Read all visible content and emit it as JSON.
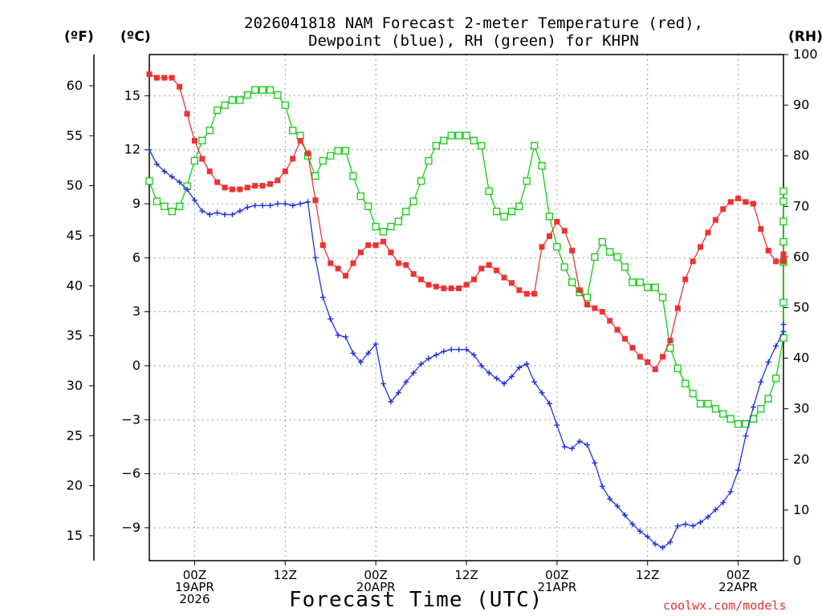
{
  "title": "2026041818 NAM Forecast 2-meter Temperature (red), Dewpoint (blue), RH (green) for KHPN",
  "title_lines": [
    "2026041818 NAM Forecast 2-meter Temperature (red),",
    "Dewpoint (blue), RH (green) for KHPN"
  ],
  "units": {
    "fahrenheit": "(ºF)",
    "celsius": "(ºC)",
    "rh": "(RH)"
  },
  "xlabel": "Forecast Time (UTC)",
  "credit": "coolwx.com/models",
  "colors": {
    "temperature": "#ee3333",
    "dewpoint": "#2233dd",
    "rh": "#11cc11",
    "grid": "#999999"
  },
  "chart_data": {
    "type": "line",
    "title": "2026041818 NAM Forecast 2-meter Temperature (red), Dewpoint (blue), RH (green) for KHPN",
    "xlabel": "Forecast Time (UTC)",
    "x_unit": "forecast hour",
    "x_range": [
      0,
      84
    ],
    "y_left_celsius": {
      "label": "(ºC)",
      "ticks": [
        15,
        12,
        9,
        6,
        3,
        0,
        -3,
        -6,
        -9
      ]
    },
    "y_left_fahrenheit": {
      "label": "(ºF)",
      "ticks": [
        60,
        55,
        50,
        45,
        40,
        35,
        30,
        25,
        20,
        15
      ]
    },
    "y_right_rh": {
      "label": "(RH)",
      "range": [
        0,
        100
      ],
      "ticks": [
        100,
        90,
        80,
        70,
        60,
        50,
        40,
        30,
        20,
        10,
        0
      ]
    },
    "x_ticks": [
      {
        "hour": 6,
        "lines": [
          "00Z",
          "19APR",
          "2026"
        ]
      },
      {
        "hour": 18,
        "lines": [
          "12Z"
        ]
      },
      {
        "hour": 30,
        "lines": [
          "00Z",
          "20APR"
        ]
      },
      {
        "hour": 42,
        "lines": [
          "12Z"
        ]
      },
      {
        "hour": 54,
        "lines": [
          "00Z",
          "21APR"
        ]
      },
      {
        "hour": 66,
        "lines": [
          "12Z"
        ]
      },
      {
        "hour": 78,
        "lines": [
          "00Z",
          "22APR"
        ]
      }
    ],
    "series": [
      {
        "name": "Temperature",
        "unit": "C",
        "marker": "filled-square",
        "x": [
          0,
          1,
          2,
          3,
          4,
          5,
          6,
          7,
          8,
          9,
          10,
          11,
          12,
          13,
          14,
          15,
          16,
          17,
          18,
          19,
          20,
          21,
          22,
          23,
          24,
          25,
          26,
          27,
          28,
          29,
          30,
          31,
          32,
          33,
          34,
          35,
          36,
          37,
          38,
          39,
          40,
          41,
          42,
          43,
          44,
          45,
          46,
          47,
          48,
          49,
          50,
          51,
          52,
          53,
          54,
          55,
          56,
          57,
          58,
          59,
          60,
          61,
          62,
          63,
          64,
          65,
          66,
          67,
          68,
          69,
          70,
          71,
          72,
          73,
          74,
          75,
          76,
          77,
          78,
          79,
          80,
          81,
          82,
          83,
          84
        ],
        "values": [
          16.2,
          16.0,
          16.0,
          16.0,
          15.5,
          14.0,
          12.5,
          11.5,
          10.8,
          10.2,
          9.9,
          9.8,
          9.8,
          9.9,
          10.0,
          10.0,
          10.1,
          10.3,
          10.8,
          11.5,
          12.5,
          11.8,
          9.2,
          6.7,
          5.7,
          5.4,
          5.0,
          5.7,
          6.3,
          6.7,
          6.7,
          6.9,
          6.3,
          5.7,
          5.6,
          5.1,
          4.8,
          4.5,
          4.4,
          4.3,
          4.3,
          4.3,
          4.5,
          4.8,
          5.4,
          5.6,
          5.3,
          4.9,
          4.6,
          4.2,
          4.0,
          4.0,
          6.6,
          7.2,
          8.0,
          7.5,
          6.4,
          4.2,
          3.4,
          3.2,
          3.0,
          2.5,
          2.0,
          1.5,
          1.0,
          0.5,
          0.2,
          -0.2,
          0.5,
          1.4,
          3.2,
          4.8,
          5.8,
          6.6,
          7.4,
          8.1,
          8.7,
          9.1,
          9.3,
          9.1,
          9.0,
          7.6,
          6.4,
          5.8,
          5.8
        ],
        "tail": [
          5.8,
          6.1,
          6.2
        ]
      },
      {
        "name": "Dewpoint",
        "unit": "C",
        "marker": "plus",
        "x": [
          0,
          1,
          2,
          3,
          4,
          5,
          6,
          7,
          8,
          9,
          10,
          11,
          12,
          13,
          14,
          15,
          16,
          17,
          18,
          19,
          20,
          21,
          22,
          23,
          24,
          25,
          26,
          27,
          28,
          29,
          30,
          31,
          32,
          33,
          34,
          35,
          36,
          37,
          38,
          39,
          40,
          41,
          42,
          43,
          44,
          45,
          46,
          47,
          48,
          49,
          50,
          51,
          52,
          53,
          54,
          55,
          56,
          57,
          58,
          59,
          60,
          61,
          62,
          63,
          64,
          65,
          66,
          67,
          68,
          69,
          70,
          71,
          72,
          73,
          74,
          75,
          76,
          77,
          78,
          79,
          80,
          81,
          82,
          83,
          84
        ],
        "values": [
          12.0,
          11.2,
          10.8,
          10.5,
          10.2,
          9.8,
          9.2,
          8.6,
          8.4,
          8.5,
          8.4,
          8.4,
          8.6,
          8.8,
          8.9,
          8.9,
          8.9,
          9.0,
          9.0,
          8.9,
          9.0,
          9.1,
          6.0,
          3.8,
          2.6,
          1.7,
          1.6,
          0.7,
          0.2,
          0.7,
          1.2,
          -1.0,
          -2.0,
          -1.5,
          -0.9,
          -0.4,
          0.1,
          0.4,
          0.6,
          0.8,
          0.9,
          0.9,
          0.9,
          0.6,
          0.0,
          -0.4,
          -0.7,
          -1.0,
          -0.6,
          -0.1,
          0.1,
          -0.9,
          -1.5,
          -2.1,
          -3.3,
          -4.5,
          -4.6,
          -4.2,
          -4.4,
          -5.4,
          -6.7,
          -7.4,
          -7.8,
          -8.3,
          -8.8,
          -9.2,
          -9.5,
          -9.9,
          -10.1,
          -9.8,
          -8.9,
          -8.8,
          -8.9,
          -8.7,
          -8.4,
          -8.0,
          -7.6,
          -7.0,
          -5.8,
          -3.9,
          -2.3,
          -0.9,
          0.2,
          1.1,
          1.9
        ],
        "tail": [
          2.3
        ]
      },
      {
        "name": "RH",
        "unit": "%",
        "axis": "right",
        "marker": "open-square",
        "x": [
          0,
          1,
          2,
          3,
          4,
          5,
          6,
          7,
          8,
          9,
          10,
          11,
          12,
          13,
          14,
          15,
          16,
          17,
          18,
          19,
          20,
          21,
          22,
          23,
          24,
          25,
          26,
          27,
          28,
          29,
          30,
          31,
          32,
          33,
          34,
          35,
          36,
          37,
          38,
          39,
          40,
          41,
          42,
          43,
          44,
          45,
          46,
          47,
          48,
          49,
          50,
          51,
          52,
          53,
          54,
          55,
          56,
          57,
          58,
          59,
          60,
          61,
          62,
          63,
          64,
          65,
          66,
          67,
          68,
          69,
          70,
          71,
          72,
          73,
          74,
          75,
          76,
          77,
          78,
          79,
          80,
          81,
          82,
          83,
          84
        ],
        "values": [
          75,
          71,
          70,
          69,
          70,
          74,
          79,
          83,
          85,
          89,
          90,
          91,
          91,
          92,
          93,
          93,
          93,
          92,
          90,
          85,
          84,
          80,
          76,
          79,
          80,
          81,
          81,
          76,
          72,
          70,
          66,
          65,
          66,
          67,
          69,
          71,
          75,
          79,
          82,
          83,
          84,
          84,
          84,
          83,
          82,
          73,
          69,
          68,
          69,
          70,
          75,
          82,
          78,
          68,
          62,
          58,
          55,
          53,
          52,
          60,
          63,
          61,
          60,
          58,
          55,
          55,
          54,
          54,
          52,
          42,
          38,
          35,
          33,
          31,
          31,
          30,
          29,
          28,
          27,
          27,
          28,
          30,
          32,
          36,
          44
        ],
        "tail": [
          51,
          59,
          63,
          67,
          71,
          73
        ]
      }
    ]
  }
}
